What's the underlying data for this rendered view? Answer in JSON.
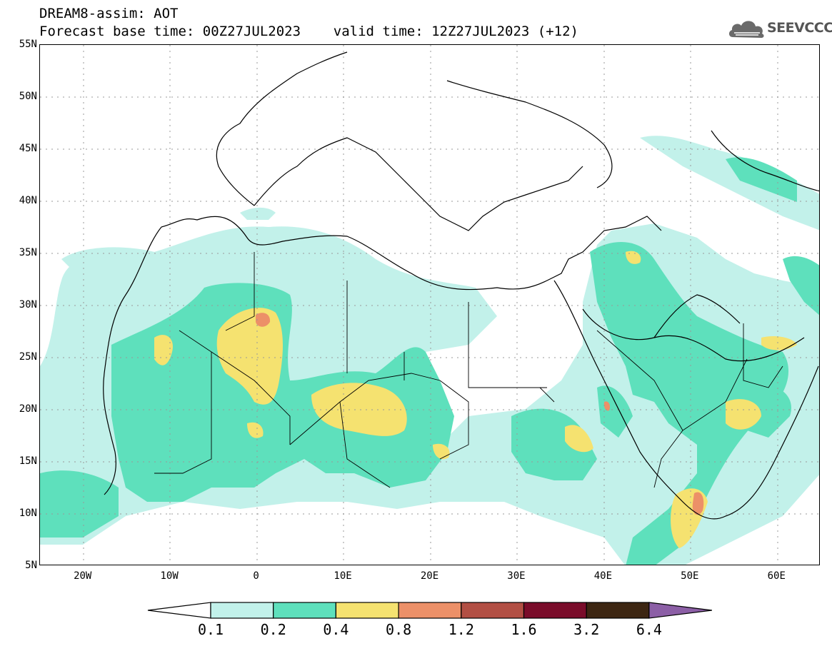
{
  "title": {
    "line1": "DREAM8-assim: AOT",
    "line2": "Forecast base time: 00Z27JUL2023    valid time: 12Z27JUL2023 (+12)"
  },
  "logo": {
    "text": "SEEVCCC",
    "icon": "cloud-logo-icon"
  },
  "map": {
    "extent": {
      "lon_min": -25,
      "lon_max": 65,
      "lat_min": 5,
      "lat_max": 55
    },
    "lat_ticks": [
      {
        "value": 55,
        "label": "55N"
      },
      {
        "value": 50,
        "label": "50N"
      },
      {
        "value": 45,
        "label": "45N"
      },
      {
        "value": 40,
        "label": "40N"
      },
      {
        "value": 35,
        "label": "35N"
      },
      {
        "value": 30,
        "label": "30N"
      },
      {
        "value": 25,
        "label": "25N"
      },
      {
        "value": 20,
        "label": "20N"
      },
      {
        "value": 15,
        "label": "15N"
      },
      {
        "value": 10,
        "label": "10N"
      },
      {
        "value": 5,
        "label": "5N"
      }
    ],
    "lon_ticks": [
      {
        "value": -20,
        "label": "20W"
      },
      {
        "value": -10,
        "label": "10W"
      },
      {
        "value": 0,
        "label": "0"
      },
      {
        "value": 10,
        "label": "10E"
      },
      {
        "value": 20,
        "label": "20E"
      },
      {
        "value": 30,
        "label": "30E"
      },
      {
        "value": 40,
        "label": "40E"
      },
      {
        "value": 50,
        "label": "50E"
      },
      {
        "value": 60,
        "label": "60E"
      }
    ]
  },
  "colorbar": {
    "labels": [
      "0.1",
      "0.2",
      "0.4",
      "0.8",
      "1.2",
      "1.6",
      "3.2",
      "6.4"
    ],
    "colors": [
      "#ffffff",
      "#c2f1ea",
      "#5ee0bc",
      "#f5e270",
      "#ec9068",
      "#b24f44",
      "#7a0c2a",
      "#3d2612",
      "#8c5fa6"
    ]
  }
}
